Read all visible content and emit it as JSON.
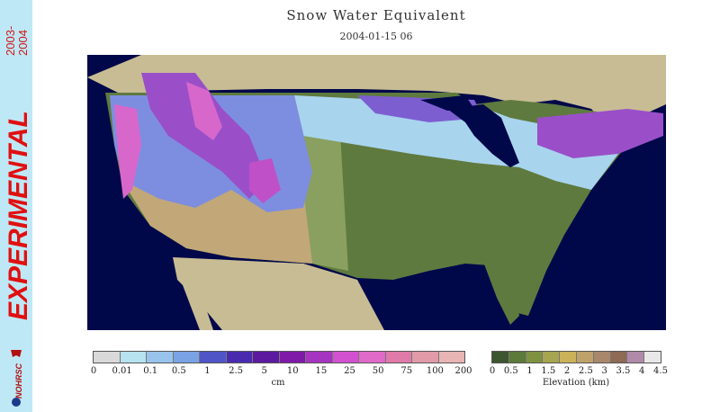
{
  "title": "Snow Water Equivalent",
  "datetime": "2004-01-15 06",
  "sidebar": {
    "years": [
      "2003-",
      "2004"
    ],
    "label": "EXPERIMENTAL",
    "logo_text": "NOHRSC"
  },
  "legend_swe": {
    "unit": "cm",
    "ticks": [
      "0",
      "0.01",
      "0.1",
      "0.5",
      "1",
      "2.5",
      "5",
      "10",
      "15",
      "25",
      "50",
      "75",
      "100",
      "200"
    ],
    "colors": [
      "#d9d9d9",
      "#b7e2f0",
      "#98c4ec",
      "#7aa3e6",
      "#4f55c7",
      "#4a2bb0",
      "#5b1aa0",
      "#7f1aa8",
      "#a535c0",
      "#d251d0",
      "#e06ac8",
      "#e07aa8",
      "#e09aa8",
      "#e8b4b4"
    ]
  },
  "legend_elev": {
    "unit": "Elevation (km)",
    "ticks": [
      "0",
      "0.5",
      "1",
      "1.5",
      "2",
      "2.5",
      "3",
      "3.5",
      "4",
      "4.5"
    ],
    "colors": [
      "#3d5530",
      "#5c7a3a",
      "#7e9242",
      "#a7a54f",
      "#c9b25a",
      "#bfa26a",
      "#a8876a",
      "#8f6a55",
      "#b08aa8",
      "#e8e8e8"
    ]
  },
  "colors": {
    "ocean": "#00084a",
    "land_outside": "#c8bc94",
    "lowland": "#5f7a3e",
    "plains": "#8aa060",
    "snow_light": "#a8d4ee",
    "snow_mid": "#7d8ee0",
    "snow_heavy": "#9a4fc8",
    "snow_peak": "#d867cc"
  }
}
